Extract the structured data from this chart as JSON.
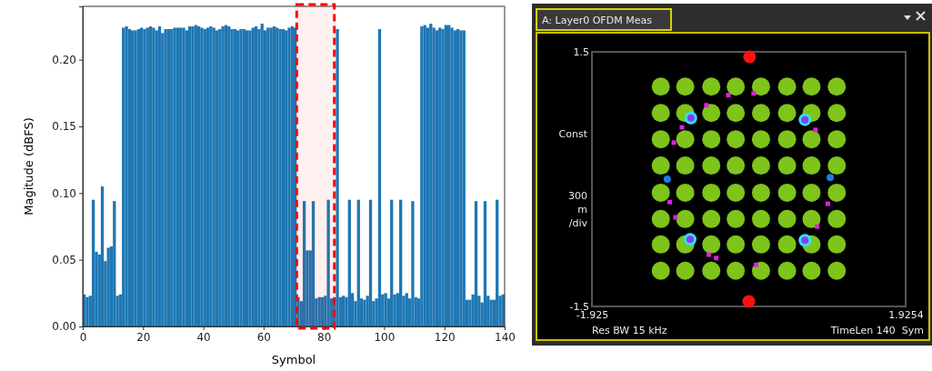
{
  "chart_data": [
    {
      "type": "histogram",
      "xlabel": "Symbol",
      "ylabel": "Magitude (dBFS)",
      "color": "#1f77b4",
      "bins": [
        0,
        1,
        2,
        3,
        4,
        5,
        6,
        7,
        8,
        9,
        10,
        11,
        12,
        13,
        14,
        15,
        16,
        17,
        18,
        19,
        20,
        21,
        22,
        23,
        24,
        25,
        26,
        27,
        28,
        29,
        30,
        31,
        32,
        33,
        34,
        35,
        36,
        37,
        38,
        39,
        40,
        41,
        42,
        43,
        44,
        45,
        46,
        47,
        48,
        49,
        50,
        51,
        52,
        53,
        54,
        55,
        56,
        57,
        58,
        59,
        60,
        61,
        62,
        63,
        64,
        65,
        66,
        67,
        68,
        69,
        70,
        71,
        72,
        73,
        74,
        75,
        76,
        77,
        78,
        79,
        80,
        81,
        82,
        83,
        84,
        85,
        86,
        87,
        88,
        89,
        90,
        91,
        92,
        93,
        94,
        95,
        96,
        97,
        98,
        99,
        100,
        101,
        102,
        103,
        104,
        105,
        106,
        107,
        108,
        109,
        110,
        111,
        112,
        113,
        114,
        115,
        116,
        117,
        118,
        119,
        120,
        121,
        122,
        123,
        124,
        125,
        126,
        127,
        128,
        129,
        130,
        131,
        132,
        133,
        134,
        135,
        136,
        137,
        138,
        139,
        140
      ],
      "values": [
        0.024,
        0.022,
        0.023,
        0.095,
        0.056,
        0.054,
        0.105,
        0.049,
        0.059,
        0.06,
        0.094,
        0.023,
        0.024,
        0.224,
        0.225,
        0.223,
        0.222,
        0.222,
        0.223,
        0.224,
        0.223,
        0.224,
        0.225,
        0.224,
        0.222,
        0.225,
        0.22,
        0.223,
        0.223,
        0.223,
        0.224,
        0.224,
        0.224,
        0.224,
        0.222,
        0.225,
        0.225,
        0.226,
        0.225,
        0.224,
        0.223,
        0.224,
        0.225,
        0.224,
        0.222,
        0.223,
        0.225,
        0.226,
        0.225,
        0.223,
        0.223,
        0.222,
        0.223,
        0.223,
        0.222,
        0.222,
        0.224,
        0.225,
        0.223,
        0.227,
        0.222,
        0.224,
        0.224,
        0.225,
        0.224,
        0.223,
        0.223,
        0.222,
        0.224,
        0.225,
        0.224,
        0.022,
        0.019,
        0.094,
        0.057,
        0.057,
        0.094,
        0.021,
        0.022,
        0.022,
        0.023,
        0.095,
        0.021,
        0.022,
        0.223,
        0.022,
        0.023,
        0.022,
        0.095,
        0.025,
        0.019,
        0.095,
        0.021,
        0.02,
        0.023,
        0.095,
        0.019,
        0.021,
        0.223,
        0.024,
        0.025,
        0.021,
        0.095,
        0.024,
        0.025,
        0.095,
        0.023,
        0.025,
        0.021,
        0.094,
        0.022,
        0.021,
        0.225,
        0.226,
        0.224,
        0.227,
        0.224,
        0.222,
        0.224,
        0.223,
        0.226,
        0.226,
        0.224,
        0.222,
        0.223,
        0.222,
        0.222,
        0.02,
        0.02,
        0.024,
        0.094,
        0.023,
        0.018,
        0.094,
        0.023,
        0.02,
        0.02,
        0.095,
        0.023,
        0.024
      ],
      "xlim": [
        0,
        140
      ],
      "xticks": [
        0,
        20,
        40,
        60,
        80,
        100,
        120,
        140
      ],
      "ylim": [
        0,
        0.24
      ],
      "yticks": [
        {
          "value": 0,
          "label": "0.00"
        },
        {
          "value": 0.05,
          "label": "0.05"
        },
        {
          "value": 0.1,
          "label": "0.10"
        },
        {
          "value": 0.15,
          "label": "0.15"
        },
        {
          "value": 0.2,
          "label": "0.20"
        }
      ],
      "bands": [
        {
          "axis": "x",
          "from": 71,
          "to": 83.5,
          "color": "#ff0000"
        }
      ]
    },
    {
      "type": "scatter",
      "title": "A: Layer0 OFDM Meas",
      "ylabel": "Const 300 m /div",
      "annotations": [
        "Res BW 15 kHz",
        "TimeLen 140  Sym"
      ],
      "xlim": [
        -1.925,
        1.9254
      ],
      "xticks": [
        -1.925,
        1.9254
      ],
      "ylim": [
        -1.5,
        1.5
      ],
      "yticks": [
        -1.5,
        1.5
      ],
      "series": [
        {
          "color": "#7ec41a",
          "marker": "circle",
          "x": [
            -1.08,
            -0.78,
            -0.46,
            -0.16,
            0.15,
            0.47,
            0.77,
            1.08,
            -1.08,
            -0.78,
            -0.46,
            -0.16,
            0.15,
            0.47,
            0.77,
            1.08,
            -1.08,
            -0.78,
            -0.46,
            -0.16,
            0.15,
            0.47,
            0.77,
            1.08,
            -1.08,
            -0.78,
            -0.46,
            -0.16,
            0.15,
            0.47,
            0.77,
            1.08,
            -1.08,
            -0.78,
            -0.46,
            -0.16,
            0.15,
            0.47,
            0.77,
            1.08,
            -1.08,
            -0.78,
            -0.46,
            -0.16,
            0.15,
            0.47,
            0.77,
            1.08,
            -1.08,
            -0.78,
            -0.46,
            -0.16,
            0.15,
            0.47,
            0.77,
            1.08,
            -1.08,
            -0.78,
            -0.46,
            -0.16,
            0.15,
            0.47,
            0.77,
            1.08
          ],
          "values": [
            1.09,
            1.09,
            1.09,
            1.09,
            1.09,
            1.09,
            1.09,
            1.09,
            0.78,
            0.78,
            0.78,
            0.78,
            0.78,
            0.78,
            0.78,
            0.78,
            0.47,
            0.47,
            0.47,
            0.47,
            0.47,
            0.47,
            0.47,
            0.47,
            0.16,
            0.16,
            0.16,
            0.16,
            0.16,
            0.16,
            0.16,
            0.16,
            -0.16,
            -0.16,
            -0.16,
            -0.16,
            -0.16,
            -0.16,
            -0.16,
            -0.16,
            -0.47,
            -0.47,
            -0.47,
            -0.47,
            -0.47,
            -0.47,
            -0.47,
            -0.47,
            -0.77,
            -0.77,
            -0.77,
            -0.77,
            -0.77,
            -0.77,
            -0.77,
            -0.77,
            -1.08,
            -1.08,
            -1.08,
            -1.08,
            -1.08,
            -1.08,
            -1.08,
            -1.08
          ]
        },
        {
          "color": "#e020e0",
          "marker": "square",
          "x": [
            -0.25,
            0.06,
            -0.52,
            -0.82,
            -0.92,
            0.82,
            -0.97,
            -0.9,
            0.97,
            0.84,
            -0.49,
            -0.4,
            0.09
          ],
          "values": [
            0.99,
            1.01,
            0.87,
            0.61,
            0.43,
            0.58,
            -0.27,
            -0.45,
            -0.29,
            -0.56,
            -0.89,
            -0.93,
            -1.01
          ]
        },
        {
          "color": "#30e0f0",
          "marker": "circle",
          "x": [
            -0.71,
            0.69,
            -0.72,
            0.69
          ],
          "values": [
            0.72,
            0.7,
            -0.71,
            -0.72
          ]
        },
        {
          "color": "#8a3cf0",
          "marker": "circle",
          "x": [
            -0.71,
            0.69,
            -0.72,
            0.69
          ],
          "values": [
            0.72,
            0.7,
            -0.71,
            -0.72
          ]
        },
        {
          "color": "#1e7ee8",
          "marker": "circle",
          "x": [
            -1.0,
            1.0
          ],
          "values": [
            0.0,
            0.02
          ]
        },
        {
          "color": "#ff1010",
          "marker": "circle",
          "x": [
            0.01,
            0.0
          ],
          "values": [
            1.44,
            -1.44
          ]
        }
      ]
    }
  ]
}
